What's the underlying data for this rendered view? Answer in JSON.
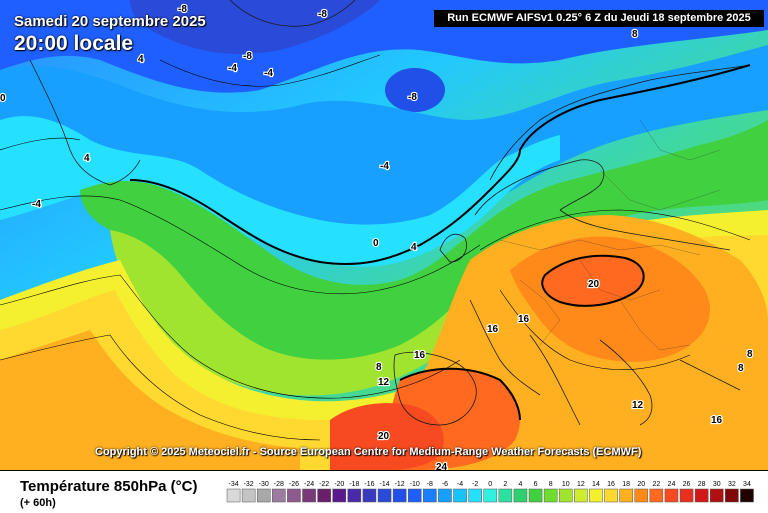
{
  "header": {
    "date": "Samedi 20 septembre 2025",
    "time": "20:00 locale",
    "run": "Run ECMWF AIFSv1 0.25° 6 Z du Jeudi 18 septembre 2025"
  },
  "footer": {
    "variable": "Température 850hPa (°C)",
    "lead_time": "(+ 60h)",
    "copyright": "Copyright © 2025 Meteociel.fr - Source European Centre for Medium-Range Weather Forecasts (ECMWF)"
  },
  "legend": {
    "values": [
      "-34",
      "-32",
      "-30",
      "-28",
      "-26",
      "-24",
      "-22",
      "-20",
      "-18",
      "-16",
      "-14",
      "-12",
      "-10",
      "-8",
      "-6",
      "-4",
      "-2",
      "0",
      "2",
      "4",
      "6",
      "8",
      "10",
      "12",
      "14",
      "16",
      "18",
      "20",
      "22",
      "24",
      "26",
      "28",
      "30",
      "32",
      "34"
    ],
    "colors": [
      "#d9d9d9",
      "#c4c4c4",
      "#a8a8a8",
      "#9e7ba0",
      "#8c5a8c",
      "#7a3a7a",
      "#6a1f6a",
      "#5a1a8c",
      "#4a2aa8",
      "#3a3ac0",
      "#2a4ad8",
      "#2050e8",
      "#1f5fff",
      "#1a7fff",
      "#17a0ff",
      "#19c3ff",
      "#26e0ff",
      "#30f0e0",
      "#2ee0a0",
      "#30d070",
      "#40d040",
      "#70dc30",
      "#a0e430",
      "#d0ec30",
      "#f4f030",
      "#ffd830",
      "#ffb020",
      "#ff8a1a",
      "#ff6a20",
      "#f84a20",
      "#e83020",
      "#d01818",
      "#b01010",
      "#800808",
      "#200000"
    ]
  },
  "isotherm_labels": [
    "-8",
    "-8",
    "-4",
    "-8",
    "-4",
    "-8",
    "0",
    "4",
    "-4",
    "-4",
    "4",
    "0",
    "4",
    "20",
    "16",
    "16",
    "8",
    "16",
    "12",
    "8",
    "20",
    "24",
    "12",
    "16",
    "8",
    "8"
  ],
  "colors": {
    "background_top": "#1f6fff",
    "ocean_mid": "#26e0ff",
    "warm": "#ff8a1a"
  }
}
